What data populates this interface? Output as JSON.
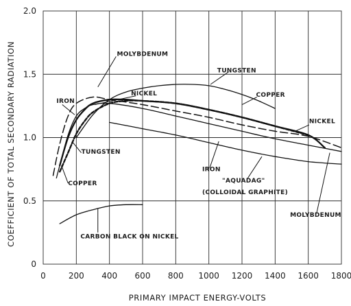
{
  "chart_data": {
    "type": "line",
    "title": "",
    "xlabel": "PRIMARY IMPACT ENERGY-VOLTS",
    "ylabel": "COEFFICIENT OF TOTAL SECONDARY RADIATION",
    "xlim": [
      0,
      1800
    ],
    "ylim": [
      0,
      2.0
    ],
    "x_ticks": [
      0,
      200,
      400,
      600,
      800,
      1000,
      1200,
      1400,
      1600,
      1800
    ],
    "y_ticks": [
      0,
      0.5,
      1.0,
      1.5,
      2.0
    ],
    "x_tick_labels": [
      "0",
      "200",
      "400",
      "600",
      "800",
      "1000",
      "1200",
      "1400",
      "1600",
      "1800"
    ],
    "y_tick_labels": [
      "0",
      "0.5",
      "1.0",
      "1.5",
      "2.0"
    ],
    "grid": true,
    "series": [
      {
        "name": "TUNGSTEN",
        "style": "solid-thin",
        "x": [
          200,
          300,
          400,
          500,
          600,
          700,
          800,
          900,
          1000,
          1100,
          1200,
          1300,
          1400
        ],
        "y": [
          1.0,
          1.18,
          1.3,
          1.36,
          1.39,
          1.41,
          1.42,
          1.42,
          1.41,
          1.38,
          1.34,
          1.29,
          1.23
        ]
      },
      {
        "name": "COPPER",
        "style": "dashed-heavy",
        "x": [
          100,
          150,
          200,
          250,
          300,
          400,
          500,
          600,
          800,
          1000,
          1200,
          1400,
          1600
        ],
        "y": [
          0.73,
          0.88,
          1.03,
          1.13,
          1.2,
          1.27,
          1.29,
          1.29,
          1.27,
          1.22,
          1.16,
          1.09,
          1.02
        ]
      },
      {
        "name": "NICKEL",
        "style": "solid-heavy",
        "x": [
          100,
          150,
          200,
          250,
          300,
          400,
          500,
          600,
          800,
          1000,
          1200,
          1400,
          1600,
          1700
        ],
        "y": [
          0.78,
          1.0,
          1.14,
          1.22,
          1.27,
          1.3,
          1.3,
          1.29,
          1.27,
          1.22,
          1.16,
          1.09,
          1.02,
          0.92
        ]
      },
      {
        "name": "IRON",
        "style": "solid-thin",
        "x": [
          80,
          100,
          150,
          200,
          250,
          300,
          400,
          600,
          800,
          1000,
          1200,
          1400,
          1600,
          1800
        ],
        "y": [
          0.68,
          0.78,
          1.02,
          1.17,
          1.23,
          1.26,
          1.27,
          1.23,
          1.17,
          1.11,
          1.05,
          0.99,
          0.94,
          0.89
        ]
      },
      {
        "name": "MOLYBDENUM",
        "style": "long-dash",
        "x": [
          60,
          100,
          150,
          200,
          300,
          400,
          600,
          800,
          1000,
          1200,
          1400,
          1600,
          1800
        ],
        "y": [
          0.7,
          0.95,
          1.17,
          1.27,
          1.32,
          1.3,
          1.26,
          1.21,
          1.16,
          1.1,
          1.05,
          1.01,
          0.92
        ]
      },
      {
        "name": "AQUADAG (COLLOIDAL GRAPHITE)",
        "style": "solid-thin",
        "x": [
          400,
          600,
          800,
          1000,
          1200,
          1400,
          1600,
          1800
        ],
        "y": [
          1.12,
          1.07,
          1.02,
          0.96,
          0.9,
          0.85,
          0.81,
          0.79
        ]
      },
      {
        "name": "CARBON BLACK ON NICKEL",
        "style": "solid-thin",
        "x": [
          100,
          200,
          300,
          400,
          500,
          600
        ],
        "y": [
          0.32,
          0.39,
          0.43,
          0.46,
          0.47,
          0.47
        ]
      }
    ],
    "annotations": [
      {
        "text": "MOLYBDENUM",
        "x": 445,
        "y": 1.66
      },
      {
        "text": "TUNGSTEN",
        "x": 1050,
        "y": 1.53
      },
      {
        "text": "NICKEL",
        "x": 530,
        "y": 1.35
      },
      {
        "text": "IRON",
        "x": 80,
        "y": 1.29
      },
      {
        "text": "COPPER",
        "x": 1285,
        "y": 1.34
      },
      {
        "text": "NICKEL",
        "x": 1605,
        "y": 1.13
      },
      {
        "text": "TUNGSTEN",
        "x": 230,
        "y": 0.89
      },
      {
        "text": "COPPER",
        "x": 150,
        "y": 0.64
      },
      {
        "text": "IRON",
        "x": 960,
        "y": 0.75
      },
      {
        "text": "\"AQUADAG\"",
        "x": 1080,
        "y": 0.66
      },
      {
        "text": "(COLLOIDAL GRAPHITE)",
        "x": 960,
        "y": 0.57
      },
      {
        "text": "MOLYBDENUM",
        "x": 1490,
        "y": 0.39
      },
      {
        "text": "CARBON BLACK ON NICKEL",
        "x": 225,
        "y": 0.22
      }
    ]
  }
}
